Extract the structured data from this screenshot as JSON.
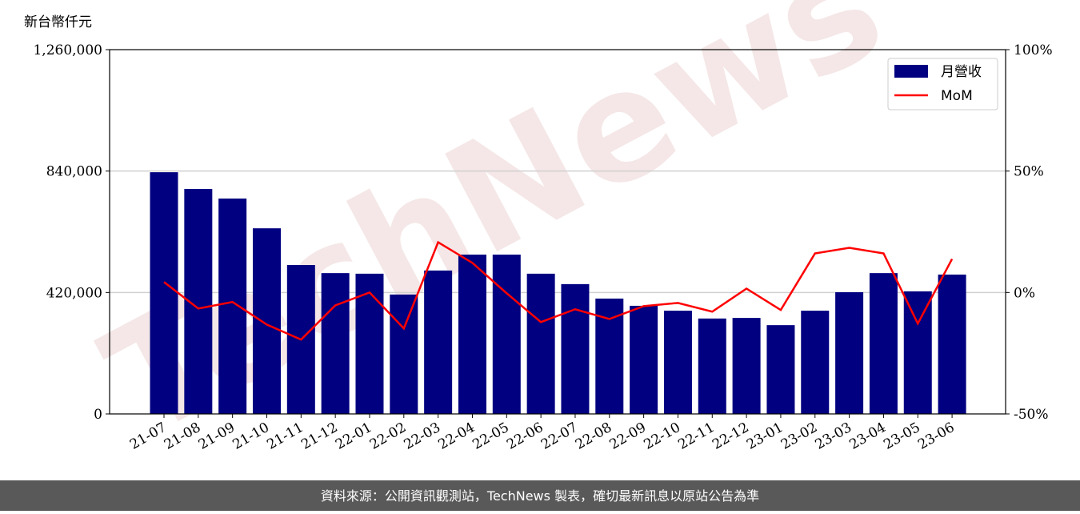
{
  "chart_data": {
    "type": "bar_line",
    "y_axis_label": "新台幣仟元",
    "watermark": "TechNews",
    "footer": "資料來源：公開資訊觀測站，TechNews 製表，確切最新訊息以原站公告為準",
    "categories": [
      "21-07",
      "21-08",
      "21-09",
      "21-10",
      "21-11",
      "21-12",
      "22-01",
      "22-02",
      "22-03",
      "22-04",
      "22-05",
      "22-06",
      "22-07",
      "22-08",
      "22-09",
      "22-10",
      "22-11",
      "22-12",
      "23-01",
      "23-02",
      "23-03",
      "23-04",
      "23-05",
      "23-06"
    ],
    "series": [
      {
        "name": "月營收",
        "color": "#000080",
        "type": "bar",
        "values": [
          836000,
          778000,
          745000,
          642000,
          515000,
          487000,
          485000,
          413000,
          496000,
          551000,
          551000,
          485000,
          449000,
          399000,
          374000,
          357000,
          330000,
          332000,
          307000,
          357000,
          421000,
          487000,
          424000,
          482000
        ]
      },
      {
        "name": "MoM",
        "color": "#ff0000",
        "type": "line",
        "axis": "y2",
        "values": [
          4.3,
          -6.6,
          -3.9,
          -13.2,
          -19.4,
          -5.3,
          0,
          -14.8,
          20.7,
          12.2,
          -0.3,
          -12.2,
          -6.9,
          -10.9,
          -5.6,
          -4.3,
          -7.9,
          1.6,
          -7.2,
          16.1,
          18.4,
          16.1,
          -12.8,
          13.8
        ]
      }
    ],
    "ylim": [
      0,
      1260000
    ],
    "yticks": [
      0,
      {
        "value": 420000,
        "label": "420,000"
      },
      {
        "value": 840000,
        "label": "840,000"
      },
      {
        "value": 1260000,
        "label": "1,260,000"
      }
    ],
    "y2lim": [
      -50,
      100
    ],
    "y2ticks": [
      {
        "value": -50,
        "label": "-50%"
      },
      {
        "value": 0,
        "label": "0%"
      },
      {
        "value": 50,
        "label": "50%"
      },
      {
        "value": 100,
        "label": "100%"
      }
    ],
    "grid": true,
    "legend": "upper right"
  }
}
